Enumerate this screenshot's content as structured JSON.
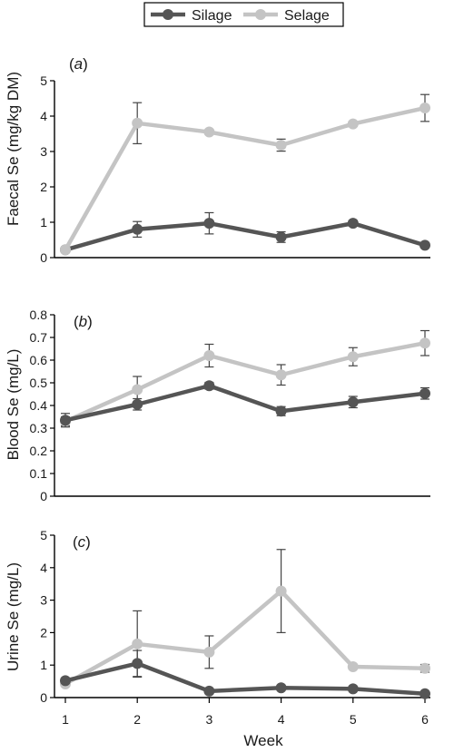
{
  "legend": {
    "silage_label": "Silage",
    "selage_label": "Selage"
  },
  "colors": {
    "silage": "#555555",
    "selage": "#c4c4c4"
  },
  "x_axis": {
    "title": "Week",
    "ticks": [
      "1",
      "2",
      "3",
      "4",
      "5",
      "6"
    ]
  },
  "chart_data": [
    {
      "type": "line",
      "panel": "(a)",
      "panel_letter": "a",
      "ylabel": "Faecal Se (mg/kg DM)",
      "xlabel": "",
      "x": [
        1,
        2,
        3,
        4,
        5,
        6
      ],
      "ylim": [
        0,
        5
      ],
      "yticks": [
        0,
        1,
        2,
        3,
        4,
        5
      ],
      "ytick_labels": [
        "0",
        "1",
        "2",
        "3",
        "4",
        "5"
      ],
      "series": [
        {
          "name": "Silage",
          "values": [
            0.22,
            0.8,
            0.97,
            0.58,
            0.97,
            0.35
          ],
          "errors": [
            0.05,
            0.22,
            0.3,
            0.15,
            0.08,
            0.04
          ]
        },
        {
          "name": "Selage",
          "values": [
            0.22,
            3.8,
            3.55,
            3.18,
            3.78,
            4.23
          ],
          "errors": [
            0.05,
            0.58,
            0.06,
            0.17,
            0.06,
            0.38
          ]
        }
      ]
    },
    {
      "type": "line",
      "panel": "(b)",
      "panel_letter": "b",
      "ylabel": "Blood Se (mg/L)",
      "xlabel": "",
      "x": [
        1,
        2,
        3,
        4,
        5,
        6
      ],
      "ylim": [
        0,
        0.8
      ],
      "yticks": [
        0,
        0.1,
        0.2,
        0.3,
        0.4,
        0.5,
        0.6,
        0.7,
        0.8
      ],
      "ytick_labels": [
        "0",
        "0.1",
        "0.2",
        "0.3",
        "0.4",
        "0.5",
        "0.6",
        "0.7",
        "0.8"
      ],
      "series": [
        {
          "name": "Silage",
          "values": [
            0.335,
            0.405,
            0.487,
            0.375,
            0.415,
            0.453
          ],
          "errors": [
            0.03,
            0.025,
            0.015,
            0.02,
            0.025,
            0.025
          ]
        },
        {
          "name": "Selage",
          "values": [
            0.33,
            0.47,
            0.62,
            0.535,
            0.615,
            0.675
          ],
          "errors": [
            0.02,
            0.058,
            0.05,
            0.045,
            0.04,
            0.055
          ]
        }
      ]
    },
    {
      "type": "line",
      "panel": "(c)",
      "panel_letter": "c",
      "ylabel": "Urine Se (mg/L)",
      "xlabel": "Week",
      "x": [
        1,
        2,
        3,
        4,
        5,
        6
      ],
      "ylim": [
        0,
        5
      ],
      "yticks": [
        0,
        1,
        2,
        3,
        4,
        5
      ],
      "ytick_labels": [
        "0",
        "1",
        "2",
        "3",
        "4",
        "5"
      ],
      "series": [
        {
          "name": "Silage",
          "values": [
            0.52,
            1.05,
            0.2,
            0.3,
            0.27,
            0.12
          ],
          "errors": [
            0.08,
            0.4,
            0.05,
            0.05,
            0.05,
            0.04
          ]
        },
        {
          "name": "Selage",
          "values": [
            0.42,
            1.65,
            1.4,
            3.28,
            0.95,
            0.9
          ],
          "errors": [
            0.05,
            1.02,
            0.5,
            1.28,
            0.05,
            0.12
          ]
        }
      ]
    }
  ]
}
